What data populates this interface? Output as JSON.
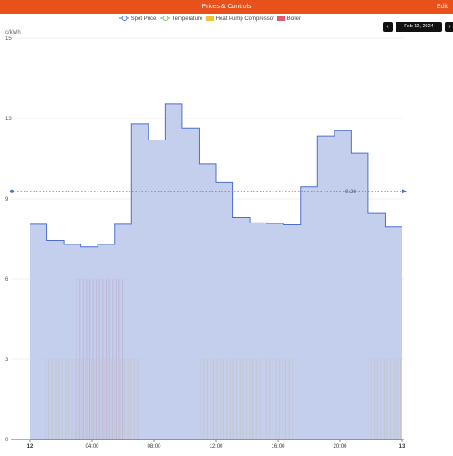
{
  "header": {
    "title": "Prices & Controls",
    "edit_label": "Edit"
  },
  "legend": {
    "items": [
      {
        "label": "Spot Price",
        "color": "#4e6fcf"
      },
      {
        "label": "Temperature",
        "color": "#7bbf6a"
      },
      {
        "label": "Heat Pump Compressor",
        "color": "#f5bf3a"
      },
      {
        "label": "Boiler",
        "color": "#e05c6a"
      }
    ]
  },
  "date_nav": {
    "prev_icon": "chevron-left-icon",
    "next_icon": "chevron-right-icon",
    "date": "Feb 12, 2024"
  },
  "chart_data": {
    "type": "area",
    "ylabel": "c/kWh",
    "ylim": [
      0,
      15
    ],
    "yticks": [
      0,
      3,
      6,
      9,
      12,
      15
    ],
    "xlim": [
      0,
      24
    ],
    "xticks": [
      {
        "x": 0,
        "label": "12",
        "bold": true
      },
      {
        "x": 4,
        "label": "04:00",
        "bold": false
      },
      {
        "x": 8,
        "label": "08:00",
        "bold": false
      },
      {
        "x": 12,
        "label": "12:00",
        "bold": false
      },
      {
        "x": 16,
        "label": "16:00",
        "bold": false
      },
      {
        "x": 20,
        "label": "20:00",
        "bold": false
      },
      {
        "x": 24,
        "label": "13",
        "bold": true
      }
    ],
    "series": [
      {
        "name": "Spot Price",
        "step": true,
        "color": "#4e6fcf",
        "fill": "#bac7ea",
        "values": [
          8.05,
          7.45,
          7.3,
          7.2,
          7.3,
          8.05,
          11.8,
          11.2,
          12.55,
          11.65,
          10.3,
          9.6,
          8.3,
          8.1,
          8.08,
          8.03,
          9.45,
          11.35,
          11.55,
          10.7,
          8.45,
          7.95
        ]
      },
      {
        "name": "Heat Pump Compressor",
        "color": "#f5bf3a",
        "level": 3,
        "on_intervals": [
          [
            1,
            7
          ],
          [
            11,
            17
          ],
          [
            22,
            24
          ]
        ]
      },
      {
        "name": "Boiler",
        "color": "#e05c6a",
        "level": 6,
        "on_intervals": [
          [
            3,
            6
          ]
        ]
      }
    ],
    "average": {
      "value": 9.28,
      "label": "9.28"
    },
    "gridlines": true
  }
}
